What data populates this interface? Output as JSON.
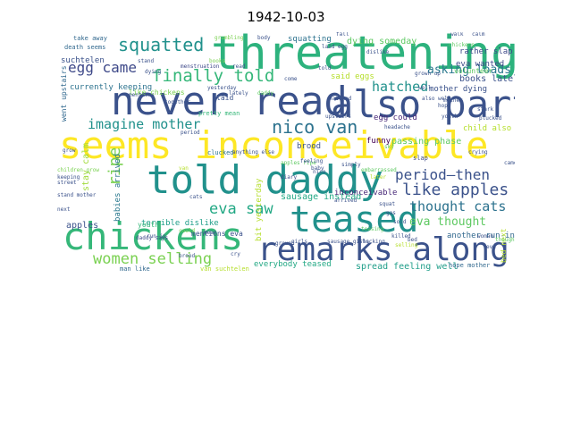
{
  "title": "1942-10-03",
  "words": [
    {
      "t": "threatening",
      "c": "#2db27d"
    },
    {
      "t": "never read",
      "c": "#3b528b"
    },
    {
      "t": "also parts",
      "c": "#3b528b"
    },
    {
      "t": "seems inconceivable",
      "c": "#fde725"
    },
    {
      "t": "told daddy",
      "c": "#21918c"
    },
    {
      "t": "teased",
      "c": "#21918c"
    },
    {
      "t": "chickens",
      "c": "#35b779"
    },
    {
      "t": "remarks along",
      "c": "#3b528b"
    },
    {
      "t": "squatted",
      "c": "#21918c"
    },
    {
      "t": "finally told",
      "c": "#35b779"
    },
    {
      "t": "egg came",
      "c": "#3e4989"
    },
    {
      "t": "hatched",
      "c": "#21918c"
    },
    {
      "t": "nico van",
      "c": "#2c728e"
    },
    {
      "t": "imagine mother",
      "c": "#21918c"
    },
    {
      "t": "period—then",
      "c": "#3b528b"
    },
    {
      "t": "like apples",
      "c": "#3b528b"
    },
    {
      "t": "eva saw",
      "c": "#22a884"
    },
    {
      "t": "ripe",
      "c": "#7ad151"
    },
    {
      "t": "thought cats",
      "c": "#2c728e"
    },
    {
      "t": "eva thought",
      "c": "#5ec962"
    },
    {
      "t": "women selling",
      "c": "#7ad151"
    },
    {
      "t": "asking loads",
      "c": "#2a788e"
    },
    {
      "t": "dying someday",
      "c": "#5ec962"
    },
    {
      "t": "squatting",
      "c": "#2c728e"
    },
    {
      "t": "said eggs",
      "c": "#b5de2b"
    },
    {
      "t": "rather slap",
      "c": "#3e4989"
    },
    {
      "t": "eva wanted",
      "c": "#3e4989"
    },
    {
      "t": "volunteer",
      "c": "#5ec962"
    },
    {
      "t": "books lately",
      "c": "#3b528b"
    },
    {
      "t": "mother dying",
      "c": "#3b528b"
    },
    {
      "t": "egg could",
      "c": "#482878"
    },
    {
      "t": "passing phase",
      "c": "#5ec962"
    },
    {
      "t": "child also",
      "c": "#b5de2b"
    },
    {
      "t": "funny",
      "c": "#440154"
    },
    {
      "t": "stay calm",
      "c": "#a0da39"
    },
    {
      "t": "apples",
      "c": "#3b528b"
    },
    {
      "t": "suchtelen",
      "c": "#3b528b"
    },
    {
      "t": "currently keeping",
      "c": "#2c728e"
    },
    {
      "t": "like chickens",
      "c": "#7ad151"
    },
    {
      "t": "take away",
      "c": "#31688e"
    },
    {
      "t": "death seems",
      "c": "#31688e"
    },
    {
      "t": "went upstairs",
      "c": "#31688e"
    },
    {
      "t": "terrible dislike",
      "c": "#1f9e89"
    },
    {
      "t": "youth",
      "c": "#35b779"
    },
    {
      "t": "sausage instead",
      "c": "#22a884"
    },
    {
      "t": "mentions eva",
      "c": "#3b528b"
    },
    {
      "t": "babies arrived",
      "c": "#2a788e"
    },
    {
      "t": "bit yesterday",
      "c": "#b5de2b"
    },
    {
      "t": "inconceivable",
      "c": "#482878"
    },
    {
      "t": "everybody teased",
      "c": "#22a884"
    },
    {
      "t": "spread feeling well",
      "c": "#1f9e89"
    },
    {
      "t": "another run-in",
      "c": "#31688e"
    },
    {
      "t": "hope mother",
      "c": "#31688e"
    },
    {
      "t": "bed next",
      "c": "#b5de2b"
    },
    {
      "t": "laid",
      "c": "#3b528b"
    },
    {
      "t": "brood",
      "c": "#3b528b"
    },
    {
      "t": "clucked",
      "c": "#2c728e"
    },
    {
      "t": "pretty mean",
      "c": "#35b779"
    },
    {
      "t": "man like",
      "c": "#31688e"
    },
    {
      "t": "van suchtelen",
      "c": "#b5de2b"
    },
    {
      "t": "daddy says",
      "c": "#3e4989"
    },
    {
      "t": "slap",
      "c": "#3e4989"
    },
    {
      "t": "grumbling",
      "c": "#7ad151"
    },
    {
      "t": "menstruation",
      "c": "#3e4989"
    },
    {
      "t": "fall",
      "c": "#3b528b"
    },
    {
      "t": "stand",
      "c": "#3b528b"
    },
    {
      "t": "walk",
      "c": "#3b528b"
    },
    {
      "t": "calm",
      "c": "#3b528b"
    },
    {
      "t": "read",
      "c": "#3b528b"
    },
    {
      "t": "simply",
      "c": "#3b528b"
    },
    {
      "t": "embarrassed",
      "c": "#5ec962"
    },
    {
      "t": "headache",
      "c": "#3b528b"
    },
    {
      "t": "mentions",
      "c": "#3b528b"
    },
    {
      "t": "children grow",
      "c": "#7ad151"
    },
    {
      "t": "keeping",
      "c": "#3b528b"
    },
    {
      "t": "diary",
      "c": "#3e4989"
    },
    {
      "t": "shocking",
      "c": "#3b528b"
    },
    {
      "t": "grown up",
      "c": "#3b528b"
    },
    {
      "t": "books",
      "c": "#7ad151"
    },
    {
      "t": "plucked",
      "c": "#3b528b"
    },
    {
      "t": "ground",
      "c": "#3b528b"
    },
    {
      "t": "girls",
      "c": "#3b528b"
    },
    {
      "t": "also well",
      "c": "#3b528b"
    },
    {
      "t": "could",
      "c": "#7ad151"
    },
    {
      "t": "gas",
      "c": "#3b528b"
    },
    {
      "t": "nico",
      "c": "#3b528b"
    },
    {
      "t": "come",
      "c": "#3b528b"
    },
    {
      "t": "later",
      "c": "#b5de2b"
    },
    {
      "t": "mother",
      "c": "#3b528b"
    },
    {
      "t": "stark",
      "c": "#3b528b"
    },
    {
      "t": "sold",
      "c": "#3b528b"
    },
    {
      "t": "selling",
      "c": "#b5de2b"
    },
    {
      "t": "hope",
      "c": "#3b528b"
    },
    {
      "t": "killed",
      "c": "#3b528b"
    },
    {
      "t": "sausage girls",
      "c": "#3b528b"
    },
    {
      "t": "teasing",
      "c": "#5ec962"
    },
    {
      "t": "youth",
      "c": "#3b528b"
    },
    {
      "t": "chickens",
      "c": "#5ec962"
    },
    {
      "t": "dislike",
      "c": "#3b528b"
    },
    {
      "t": "baby",
      "c": "#3b528b"
    },
    {
      "t": "lately",
      "c": "#3b528b"
    },
    {
      "t": "mean",
      "c": "#3b528b"
    },
    {
      "t": "daddy",
      "c": "#5ec962"
    },
    {
      "t": "yesterday",
      "c": "#3b528b"
    },
    {
      "t": "arrived",
      "c": "#3b528b"
    },
    {
      "t": "run-in",
      "c": "#3b528b"
    },
    {
      "t": "woman",
      "c": "#3b528b"
    },
    {
      "t": "stand mother",
      "c": "#3b528b"
    },
    {
      "t": "next",
      "c": "#3b528b"
    },
    {
      "t": "thought",
      "c": "#5ec962"
    },
    {
      "t": "bed",
      "c": "#3b528b"
    },
    {
      "t": "eva",
      "c": "#3b528b"
    },
    {
      "t": "van",
      "c": "#b5de2b"
    },
    {
      "t": "squat",
      "c": "#3b528b"
    },
    {
      "t": "told",
      "c": "#3b528b"
    },
    {
      "t": "apples ripe",
      "c": "#5ec962"
    },
    {
      "t": "street",
      "c": "#3b528b"
    },
    {
      "t": "period",
      "c": "#3b528b"
    },
    {
      "t": "anything else",
      "c": "#3b528b"
    },
    {
      "t": "cats",
      "c": "#3b528b"
    },
    {
      "t": "crying",
      "c": "#3b528b"
    },
    {
      "t": "sky",
      "c": "#5ec962"
    },
    {
      "t": "came",
      "c": "#3b528b"
    },
    {
      "t": "hatched",
      "c": "#3b528b"
    },
    {
      "t": "body",
      "c": "#3b528b"
    },
    {
      "t": "feeling",
      "c": "#3b528b"
    },
    {
      "t": "brood",
      "c": "#3b528b"
    },
    {
      "t": "cry",
      "c": "#3b528b"
    },
    {
      "t": "dying",
      "c": "#3b528b"
    },
    {
      "t": "together",
      "c": "#3b528b"
    },
    {
      "t": "laid egg",
      "c": "#3b528b"
    },
    {
      "t": "well",
      "c": "#3b528b"
    },
    {
      "t": "upstairs",
      "c": "#3b528b"
    },
    {
      "t": "grow",
      "c": "#3b528b"
    }
  ]
}
